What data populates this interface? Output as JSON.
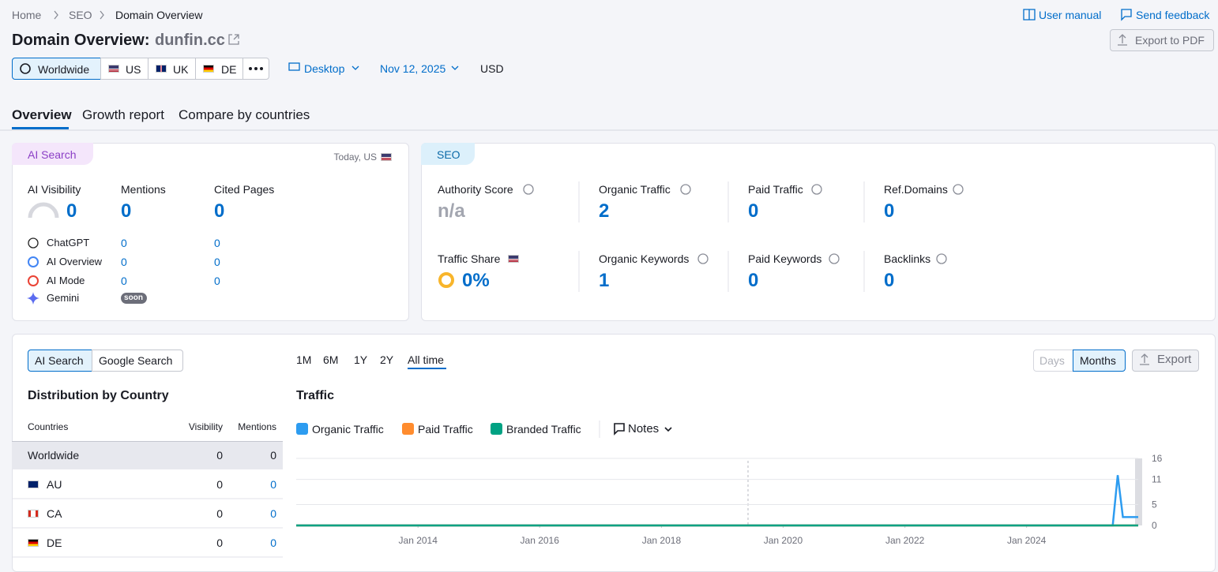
{
  "breadcrumbs": [
    "Home",
    "SEO",
    "Domain Overview"
  ],
  "header": {
    "title": "Domain Overview:",
    "domain": "dunfin.cc",
    "links": [
      "User manual",
      "Send feedback"
    ],
    "export": "Export to PDF"
  },
  "filters": {
    "regions": [
      "Worldwide",
      "US",
      "UK",
      "DE"
    ],
    "device": "Desktop",
    "date": "Nov 12, 2025",
    "currency": "USD"
  },
  "tabs": [
    "Overview",
    "Growth report",
    "Compare by countries"
  ],
  "ai_search": {
    "label": "AI Search",
    "note": "Today, US",
    "metrics": [
      {
        "label": "AI Visibility",
        "value": 0
      },
      {
        "label": "Mentions",
        "value": 0
      },
      {
        "label": "Cited Pages",
        "value": 0
      }
    ],
    "platforms": [
      {
        "name": "ChatGPT",
        "mentions": 0,
        "cited": 0
      },
      {
        "name": "AI Overview",
        "mentions": 0,
        "cited": 0
      },
      {
        "name": "AI Mode",
        "mentions": 0,
        "cited": 0
      },
      {
        "name": "Gemini",
        "badge": "soon"
      }
    ]
  },
  "seo": {
    "label": "SEO",
    "metrics": [
      {
        "label": "Authority Score",
        "value": "n/a"
      },
      {
        "label": "Organic Traffic",
        "value": 2
      },
      {
        "label": "Paid Traffic",
        "value": 0
      },
      {
        "label": "Ref.Domains",
        "value": 0
      },
      {
        "label": "Traffic Share",
        "value": "0%"
      },
      {
        "label": "Organic Keywords",
        "value": 1
      },
      {
        "label": "Paid Keywords",
        "value": 0
      },
      {
        "label": "Backlinks",
        "value": 0
      }
    ]
  },
  "controls": {
    "modes": [
      "AI Search",
      "Google Search"
    ],
    "periods": [
      "1M",
      "6M",
      "1Y",
      "2Y",
      "All time"
    ],
    "granularity": [
      "Days",
      "Months"
    ],
    "export": "Export",
    "notes": "Notes"
  },
  "distribution": {
    "title": "Distribution by Country",
    "columns": [
      "Countries",
      "Visibility",
      "Mentions"
    ],
    "rows": [
      [
        "Worldwide",
        0,
        0
      ],
      [
        "AU",
        0,
        0
      ],
      [
        "CA",
        0,
        0
      ],
      [
        "DE",
        0,
        0
      ]
    ]
  },
  "chart_data": {
    "type": "line",
    "title": "Traffic",
    "x": [
      "Jan 2012",
      "Jun 2025",
      "Jul 2025",
      "Aug 2025",
      "Nov 2025"
    ],
    "series": [
      {
        "name": "Organic Traffic",
        "color": "#2d9cf0",
        "values": [
          0,
          0,
          12,
          2,
          2
        ]
      },
      {
        "name": "Paid Traffic",
        "color": "#ff8c2e",
        "values": [
          0,
          0,
          0,
          0,
          0
        ]
      },
      {
        "name": "Branded Traffic",
        "color": "#00a283",
        "values": [
          0,
          0,
          0,
          0,
          0
        ]
      }
    ],
    "xlim": [
      "Jan 2012",
      "Nov 2025"
    ],
    "xticks": [
      "Jan 2014",
      "Jan 2016",
      "Jan 2018",
      "Jan 2020",
      "Jan 2022",
      "Jan 2024"
    ],
    "ylim": [
      0,
      16
    ],
    "yticks": [
      0,
      5,
      11,
      16
    ],
    "grid": true
  }
}
